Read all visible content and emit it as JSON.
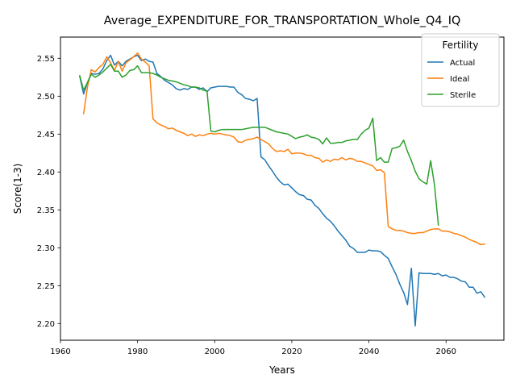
{
  "chart_data": {
    "type": "line",
    "title": "Average_EXPENDITURE_FOR_TRANSPORTATION_Whole_Q4_IQ",
    "xlabel": "Years",
    "ylabel": "Score(1-3)",
    "xlim": [
      1960,
      2075
    ],
    "ylim": [
      2.178,
      2.578
    ],
    "xticks": [
      1960,
      1980,
      2000,
      2020,
      2040,
      2060
    ],
    "yticks": [
      2.2,
      2.25,
      2.3,
      2.35,
      2.4,
      2.45,
      2.5,
      2.55
    ],
    "xtick_labels": [
      "1960",
      "1980",
      "2000",
      "2020",
      "2040",
      "2060"
    ],
    "ytick_labels": [
      "2.20",
      "2.25",
      "2.30",
      "2.35",
      "2.40",
      "2.45",
      "2.50",
      "2.55"
    ],
    "grid": false,
    "legend": {
      "title": "Fertility",
      "placement": "top-right"
    },
    "series": [
      {
        "name": "Actual",
        "color": "#1f77b4",
        "x": [
          1965,
          1966,
          1967,
          1968,
          1969,
          1970,
          1971,
          1972,
          1973,
          1974,
          1975,
          1976,
          1977,
          1978,
          1979,
          1980,
          1981,
          1982,
          1983,
          1984,
          1985,
          1986,
          1987,
          1988,
          1989,
          1990,
          1991,
          1992,
          1993,
          1994,
          1995,
          1996,
          1997,
          1998,
          1999,
          2000,
          2001,
          2002,
          2003,
          2004,
          2005,
          2006,
          2007,
          2008,
          2009,
          2010,
          2011,
          2012,
          2013,
          2014,
          2015,
          2016,
          2017,
          2018,
          2019,
          2020,
          2021,
          2022,
          2023,
          2024,
          2025,
          2026,
          2027,
          2028,
          2029,
          2030,
          2031,
          2032,
          2033,
          2034,
          2035,
          2036,
          2037,
          2038,
          2039,
          2040,
          2041,
          2042,
          2043,
          2044,
          2045,
          2046,
          2047,
          2048,
          2049,
          2050,
          2051,
          2052,
          2053,
          2054,
          2055,
          2056,
          2057,
          2058,
          2059,
          2060,
          2061,
          2062,
          2063,
          2064,
          2065,
          2066,
          2067,
          2068,
          2069,
          2070
        ],
        "values": [
          2.526,
          2.503,
          2.518,
          2.53,
          2.529,
          2.53,
          2.536,
          2.547,
          2.554,
          2.541,
          2.546,
          2.54,
          2.546,
          2.549,
          2.552,
          2.554,
          2.547,
          2.549,
          2.546,
          2.545,
          2.53,
          2.526,
          2.521,
          2.518,
          2.515,
          2.51,
          2.508,
          2.51,
          2.509,
          2.512,
          2.512,
          2.509,
          2.511,
          2.506,
          2.511,
          2.512,
          2.513,
          2.513,
          2.513,
          2.512,
          2.512,
          2.505,
          2.502,
          2.497,
          2.496,
          2.494,
          2.497,
          2.42,
          2.416,
          2.408,
          2.401,
          2.393,
          2.387,
          2.383,
          2.384,
          2.379,
          2.374,
          2.37,
          2.369,
          2.364,
          2.363,
          2.356,
          2.352,
          2.345,
          2.339,
          2.335,
          2.329,
          2.322,
          2.316,
          2.31,
          2.302,
          2.299,
          2.294,
          2.294,
          2.294,
          2.297,
          2.296,
          2.296,
          2.295,
          2.29,
          2.286,
          2.275,
          2.265,
          2.252,
          2.241,
          2.225,
          2.273,
          2.197,
          2.267,
          2.266,
          2.266,
          2.266,
          2.265,
          2.266,
          2.263,
          2.264,
          2.261,
          2.261,
          2.259,
          2.256,
          2.255,
          2.248,
          2.248,
          2.24,
          2.242,
          2.235
        ]
      },
      {
        "name": "Ideal",
        "color": "#ff7f0e",
        "x": [
          1966,
          1967,
          1968,
          1969,
          1970,
          1971,
          1972,
          1973,
          1974,
          1975,
          1976,
          1977,
          1978,
          1979,
          1980,
          1981,
          1982,
          1983,
          1984,
          1985,
          1986,
          1987,
          1988,
          1989,
          1990,
          1991,
          1992,
          1993,
          1994,
          1995,
          1996,
          1997,
          1998,
          1999,
          2000,
          2001,
          2002,
          2003,
          2004,
          2005,
          2006,
          2007,
          2008,
          2009,
          2010,
          2011,
          2012,
          2013,
          2014,
          2015,
          2016,
          2017,
          2018,
          2019,
          2020,
          2021,
          2022,
          2023,
          2024,
          2025,
          2026,
          2027,
          2028,
          2029,
          2030,
          2031,
          2032,
          2033,
          2034,
          2035,
          2036,
          2037,
          2038,
          2039,
          2040,
          2041,
          2042,
          2043,
          2044,
          2045,
          2046,
          2047,
          2048,
          2049,
          2050,
          2051,
          2052,
          2053,
          2054,
          2055,
          2056,
          2057,
          2058,
          2059,
          2060,
          2061,
          2062,
          2063,
          2064,
          2065,
          2066,
          2067,
          2068,
          2069,
          2070
        ],
        "values": [
          2.477,
          2.512,
          2.535,
          2.532,
          2.538,
          2.542,
          2.552,
          2.544,
          2.534,
          2.546,
          2.533,
          2.544,
          2.548,
          2.552,
          2.557,
          2.549,
          2.545,
          2.54,
          2.47,
          2.465,
          2.462,
          2.46,
          2.457,
          2.458,
          2.455,
          2.453,
          2.451,
          2.448,
          2.45,
          2.447,
          2.449,
          2.448,
          2.45,
          2.451,
          2.45,
          2.451,
          2.45,
          2.449,
          2.448,
          2.446,
          2.44,
          2.439,
          2.442,
          2.443,
          2.444,
          2.446,
          2.443,
          2.44,
          2.437,
          2.431,
          2.427,
          2.428,
          2.427,
          2.43,
          2.424,
          2.425,
          2.425,
          2.424,
          2.422,
          2.422,
          2.419,
          2.418,
          2.413,
          2.416,
          2.414,
          2.417,
          2.416,
          2.419,
          2.416,
          2.418,
          2.417,
          2.414,
          2.414,
          2.412,
          2.41,
          2.408,
          2.402,
          2.403,
          2.399,
          2.328,
          2.325,
          2.323,
          2.323,
          2.322,
          2.32,
          2.319,
          2.319,
          2.32,
          2.32,
          2.322,
          2.324,
          2.325,
          2.325,
          2.322,
          2.322,
          2.321,
          2.319,
          2.318,
          2.316,
          2.314,
          2.311,
          2.309,
          2.307,
          2.304,
          2.305
        ]
      },
      {
        "name": "Sterile",
        "color": "#2ca02c",
        "x": [
          1965,
          1966,
          1967,
          1968,
          1969,
          1970,
          1971,
          1972,
          1973,
          1974,
          1975,
          1976,
          1977,
          1978,
          1979,
          1980,
          1981,
          1982,
          1983,
          1984,
          1985,
          1986,
          1987,
          1988,
          1989,
          1990,
          1991,
          1992,
          1993,
          1994,
          1995,
          1996,
          1997,
          1998,
          1999,
          2000,
          2001,
          2002,
          2003,
          2004,
          2005,
          2006,
          2007,
          2008,
          2009,
          2010,
          2011,
          2012,
          2013,
          2014,
          2015,
          2016,
          2017,
          2018,
          2019,
          2020,
          2021,
          2022,
          2023,
          2024,
          2025,
          2026,
          2027,
          2028,
          2029,
          2030,
          2031,
          2032,
          2033,
          2034,
          2035,
          2036,
          2037,
          2038,
          2039,
          2040,
          2041,
          2042,
          2043,
          2044,
          2045,
          2046,
          2047,
          2048,
          2049,
          2050,
          2051,
          2052,
          2053,
          2054,
          2055,
          2056,
          2057,
          2058
        ],
        "values": [
          2.527,
          2.508,
          2.518,
          2.529,
          2.525,
          2.528,
          2.532,
          2.537,
          2.542,
          2.533,
          2.533,
          2.525,
          2.528,
          2.534,
          2.535,
          2.54,
          2.531,
          2.531,
          2.531,
          2.53,
          2.528,
          2.525,
          2.523,
          2.521,
          2.52,
          2.519,
          2.517,
          2.515,
          2.514,
          2.512,
          2.512,
          2.511,
          2.508,
          2.507,
          2.454,
          2.453,
          2.455,
          2.456,
          2.456,
          2.456,
          2.456,
          2.456,
          2.456,
          2.457,
          2.458,
          2.459,
          2.459,
          2.459,
          2.459,
          2.457,
          2.455,
          2.453,
          2.452,
          2.451,
          2.45,
          2.447,
          2.444,
          2.446,
          2.447,
          2.449,
          2.446,
          2.445,
          2.443,
          2.437,
          2.445,
          2.438,
          2.438,
          2.439,
          2.439,
          2.441,
          2.442,
          2.443,
          2.443,
          2.45,
          2.455,
          2.458,
          2.471,
          2.415,
          2.419,
          2.413,
          2.413,
          2.431,
          2.432,
          2.434,
          2.442,
          2.427,
          2.415,
          2.401,
          2.391,
          2.387,
          2.384,
          2.415,
          2.383,
          2.33
        ]
      }
    ]
  }
}
